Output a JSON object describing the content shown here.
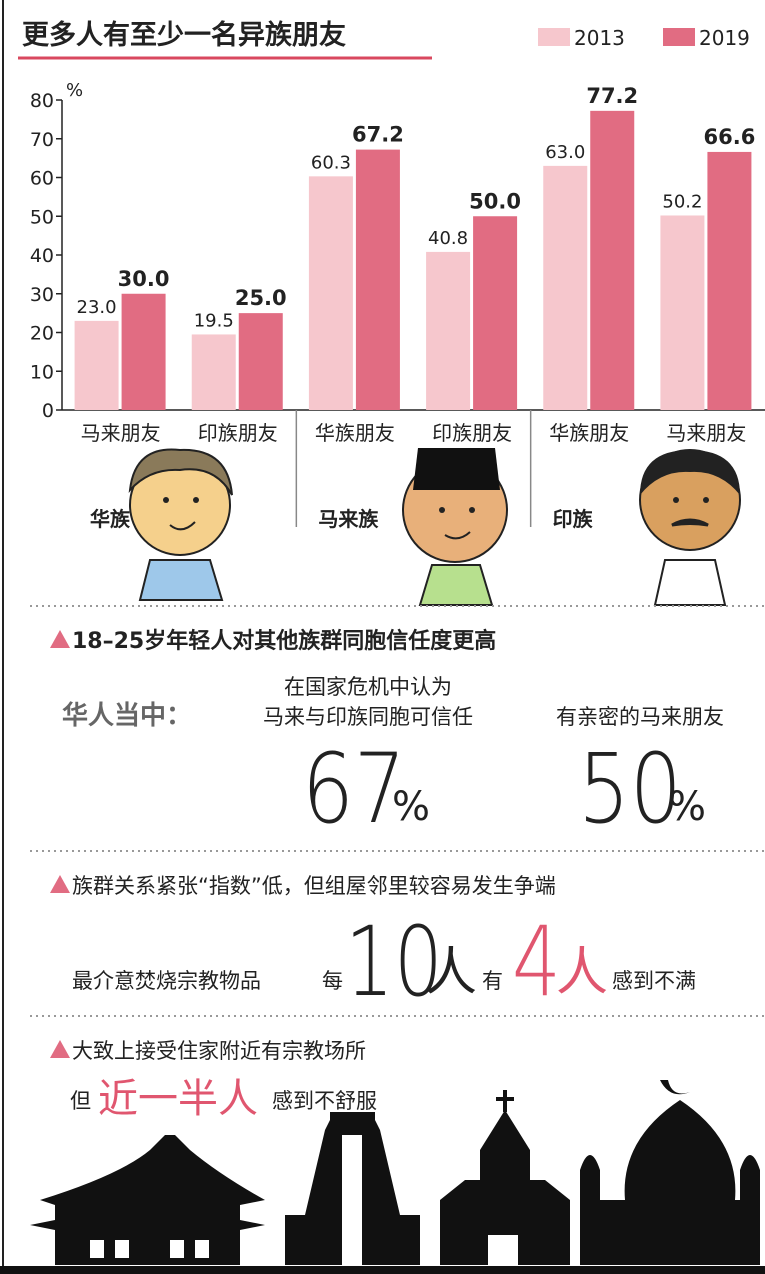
{
  "chart_data": {
    "type": "bar",
    "title": "更多人有至少一名异族朋友",
    "y_label": "%",
    "categories": [
      "马来朋友",
      "印族朋友",
      "华族朋友",
      "印族朋友",
      "华族朋友",
      "马来朋友"
    ],
    "group_labels": [
      "华族",
      "马来族",
      "印族"
    ],
    "series": [
      {
        "name": "2013",
        "color": "#f6c7cd",
        "values": [
          23.0,
          19.5,
          60.3,
          40.8,
          63.0,
          50.2
        ],
        "value_labels": [
          "23.0",
          "19.5",
          "60.3",
          "40.8",
          "63.0",
          "50.2"
        ]
      },
      {
        "name": "2019",
        "color": "#e16c82",
        "values": [
          30.0,
          25.0,
          67.2,
          50.0,
          77.2,
          66.6
        ],
        "value_labels": [
          "30.0",
          "25.0",
          "67.2",
          "50.0",
          "77.2",
          "66.6"
        ]
      }
    ],
    "ylim": [
      0,
      80
    ],
    "yticks": [
      0,
      10,
      20,
      30,
      40,
      50,
      60,
      70,
      80
    ],
    "legend": "top-right"
  },
  "trust": {
    "title": "18–25岁年轻人对其他族群同胞信任度更高",
    "group": "华人当中：",
    "stats": [
      {
        "label": [
          "在国家危机中认为",
          "马来与印族同胞可信任"
        ],
        "value": 67,
        "unit": "%"
      },
      {
        "label": [
          "有亲密的马来朋友"
        ],
        "value": 50,
        "unit": "%"
      }
    ]
  },
  "tension": {
    "title": "族群关系紧张“指数”低，但组屋邻里较容易发生争端",
    "item": "最介意焚烧宗教物品",
    "per": "每",
    "total": 10,
    "people": "人",
    "have": "有",
    "count": 4,
    "people2": "人",
    "result": "感到不满"
  },
  "worship": {
    "title": "大致上接受住家附近有宗教场所",
    "but": "但",
    "share": "近一半人",
    "result": "感到不舒服"
  }
}
